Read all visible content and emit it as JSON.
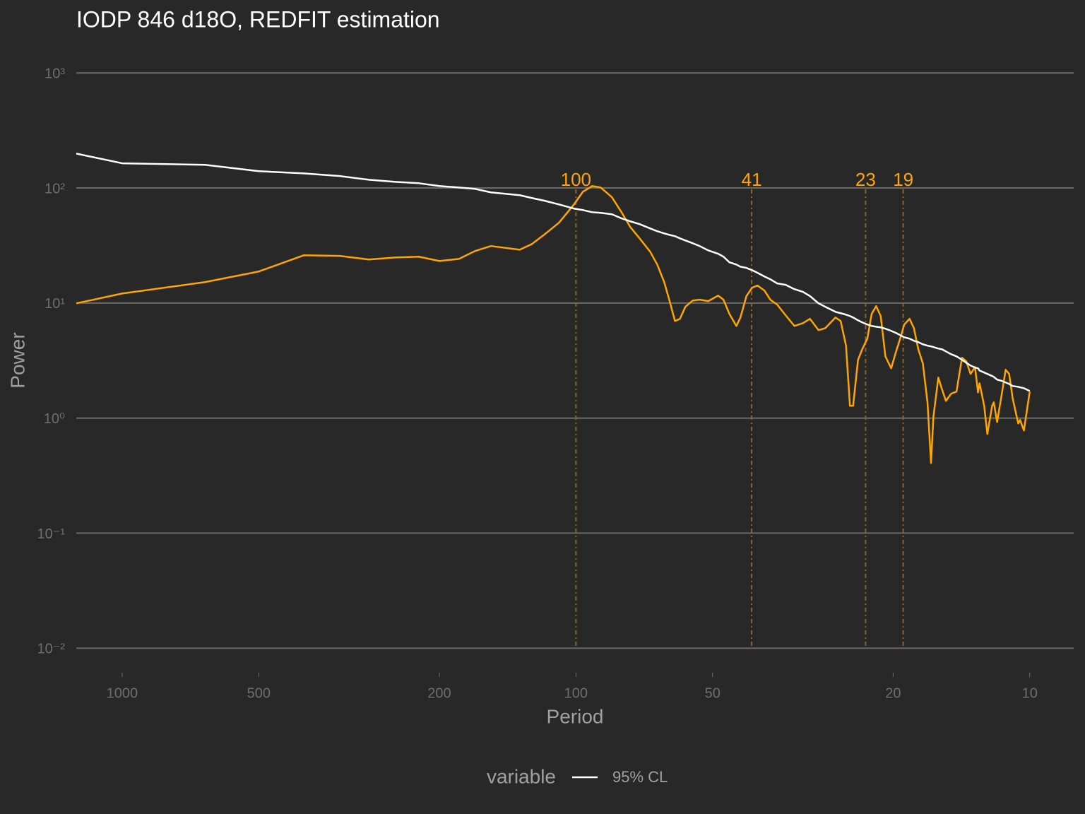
{
  "chart_data": {
    "type": "line",
    "title": "IODP 846 d18O, REDFIT estimation",
    "xlabel": "Period",
    "ylabel": "Power",
    "xlog": true,
    "ylog": true,
    "grid": true,
    "xlim": [
      1262,
      8
    ],
    "ylim": [
      0.0063,
      1600
    ],
    "xticks": [
      1000,
      500,
      200,
      100,
      50,
      20,
      10
    ],
    "yticks": [
      {
        "value": 1000,
        "label": "10³"
      },
      {
        "value": 100,
        "label": "10²"
      },
      {
        "value": 10,
        "label": "10¹"
      },
      {
        "value": 1,
        "label": "10⁰"
      },
      {
        "value": 0.1,
        "label": "10⁻¹"
      },
      {
        "value": 0.01,
        "label": "10⁻²"
      }
    ],
    "vlines": [
      100,
      41,
      23,
      19
    ],
    "vline_color": "#8a6520",
    "legend_title": "variable",
    "legend_position": "bottom",
    "x": [
      1262,
      1000,
      657,
      500,
      398,
      332,
      286,
      250,
      222,
      200,
      181,
      167,
      154,
      133,
      125,
      117,
      109,
      101,
      96.5,
      92.1,
      88.2,
      83.3,
      79.2,
      75.9,
      72.4,
      68.6,
      66.2,
      63.9,
      62.3,
      60.5,
      59.0,
      57.4,
      55.3,
      53.4,
      51.1,
      48.6,
      47.3,
      45.9,
      44.3,
      43.4,
      42.1,
      40.9,
      39.8,
      38.4,
      37.3,
      36.0,
      34.5,
      33.0,
      31.6,
      30.5,
      29.2,
      28.2,
      26.8,
      26.1,
      25.4,
      24.9,
      24.5,
      23.9,
      23.4,
      22.8,
      22.3,
      21.8,
      21.3,
      20.8,
      20.2,
      19.7,
      19.3,
      18.9,
      18.4,
      18.0,
      17.6,
      17.2,
      16.8,
      16.5,
      16.3,
      15.9,
      15.6,
      15.3,
      14.9,
      14.5,
      14.1,
      13.8,
      13.5,
      13.2,
      13.0,
      12.9,
      12.6,
      12.4,
      12.1,
      12.0,
      11.8,
      11.5,
      11.3,
      11.1,
      10.9,
      10.6,
      10.5,
      10.3,
      10.0
    ],
    "series": [
      {
        "color": "#ffa500",
        "values": [
          9.94,
          12.1,
          15.2,
          18.8,
          26.0,
          25.7,
          23.9,
          24.9,
          25.3,
          23.2,
          24.2,
          28.3,
          31.3,
          29.1,
          32.6,
          39.8,
          49.9,
          72.0,
          92.9,
          104,
          101,
          83.0,
          60.8,
          45.8,
          36.5,
          27.9,
          21.6,
          15.2,
          10.7,
          6.98,
          7.29,
          9.27,
          10.5,
          10.7,
          10.4,
          11.6,
          10.7,
          8.04,
          6.32,
          7.49,
          11.5,
          13.6,
          14.2,
          12.8,
          10.7,
          9.67,
          7.82,
          6.32,
          6.69,
          7.29,
          5.81,
          6.06,
          7.49,
          6.98,
          4.26,
          1.28,
          1.28,
          3.21,
          3.96,
          4.9,
          8.04,
          9.4,
          7.71,
          3.44,
          2.71,
          3.8,
          4.9,
          6.51,
          7.29,
          6.06,
          3.96,
          2.99,
          1.37,
          0.407,
          1.03,
          2.25,
          1.77,
          1.41,
          1.63,
          1.7,
          3.35,
          3.12,
          2.42,
          2.78,
          1.67,
          2.01,
          1.28,
          0.727,
          1.28,
          1.37,
          0.924,
          1.7,
          2.63,
          2.42,
          1.47,
          0.898,
          0.964,
          0.78,
          1.7
        ]
      },
      {
        "name": "95% CL",
        "color": "#ffffff",
        "values": [
          199,
          164,
          159,
          140,
          134,
          127,
          118,
          113,
          110,
          104,
          101,
          98.3,
          91.6,
          86.6,
          81.8,
          77.3,
          72.0,
          66.2,
          64.3,
          61.6,
          60.8,
          59.1,
          54.3,
          51.3,
          48.5,
          44.5,
          42.1,
          40.3,
          39.2,
          38.1,
          36.5,
          35.0,
          33.1,
          31.3,
          28.7,
          26.8,
          25.3,
          22.6,
          21.6,
          20.7,
          20.2,
          19.3,
          18.3,
          17.0,
          16.1,
          14.8,
          14.4,
          13.2,
          12.5,
          11.5,
          9.94,
          9.27,
          8.39,
          8.16,
          7.93,
          7.71,
          7.49,
          7.08,
          6.79,
          6.51,
          6.32,
          6.23,
          6.15,
          5.98,
          5.73,
          5.49,
          5.26,
          5.04,
          4.9,
          4.7,
          4.57,
          4.38,
          4.26,
          4.2,
          4.14,
          4.02,
          3.96,
          3.8,
          3.59,
          3.44,
          3.21,
          3.03,
          2.86,
          2.75,
          2.71,
          2.59,
          2.49,
          2.42,
          2.32,
          2.28,
          2.16,
          2.1,
          2.04,
          1.98,
          1.9,
          1.87,
          1.85,
          1.82,
          1.72
        ]
      }
    ]
  }
}
